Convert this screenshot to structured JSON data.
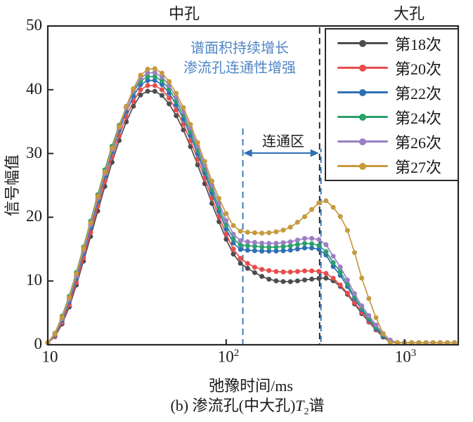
{
  "figure": {
    "region_labels": {
      "medium": "中孔",
      "large": "大孔"
    },
    "annotation": {
      "line1": "谱面积持续增长",
      "line2": "渗流孔连通性增强",
      "color": "#4f86c6"
    },
    "connected_zone_label": "连通区",
    "y_axis_title": "信号幅值",
    "x_axis_title": "弛豫时间/ms",
    "caption": {
      "prefix": "(b) 渗流孔(中大孔)",
      "var": "T",
      "sub": "2",
      "suffix": "谱"
    }
  },
  "axes": {
    "y": {
      "min": 0,
      "max": 50,
      "tick_labels": [
        "0",
        "10",
        "20",
        "30",
        "40",
        "50"
      ],
      "tick_values": [
        0,
        10,
        20,
        30,
        40,
        50
      ]
    },
    "x": {
      "scale": "log",
      "min": 10,
      "max": 2000,
      "ticks": [
        {
          "base": "10",
          "exp": ""
        },
        {
          "base": "10",
          "exp": "2"
        },
        {
          "base": "10",
          "exp": "3"
        }
      ],
      "tick_values": [
        10,
        100,
        1000
      ]
    }
  },
  "guides": {
    "pore_boundary_ms": 334,
    "pore_boundary_color": "#1a1a1a",
    "connected_zone_ms": [
      124,
      340
    ],
    "connected_zone_color": "#2e6fb7"
  },
  "colors": {
    "frame": "#262626",
    "background": "#ffffff"
  },
  "chart_data": {
    "type": "line",
    "title": "",
    "xlabel": "弛豫时间/ms",
    "ylabel": "信号幅值",
    "xlim": [
      10,
      2000
    ],
    "ylim": [
      0,
      50
    ],
    "x_scale": "log",
    "grid": false,
    "legend_position": "upper right",
    "markers": "circle",
    "x_ms": [
      10,
      12.6,
      15.8,
      20,
      25.1,
      31.6,
      37,
      44.7,
      56.2,
      70.8,
      89.1,
      112,
      141,
      178,
      224,
      282,
      330,
      355,
      400,
      450,
      500,
      560,
      630,
      710,
      800,
      900,
      1000,
      1260,
      1580,
      2000
    ],
    "series": [
      {
        "id": "run-18",
        "name": "第18次",
        "color": "#4d4d4d",
        "values": [
          0,
          4.5,
          13.0,
          23.0,
          32.0,
          38.3,
          39.8,
          38.8,
          34.3,
          27.5,
          20.0,
          13.8,
          11.5,
          10.2,
          9.9,
          10.2,
          10.4,
          10.5,
          10.0,
          8.8,
          7.2,
          5.3,
          3.6,
          2.0,
          0.7,
          0.1,
          0,
          0,
          0,
          0
        ]
      },
      {
        "id": "run-20",
        "name": "第20次",
        "color": "#e84c4c",
        "values": [
          0,
          4.8,
          13.5,
          23.8,
          32.8,
          39.1,
          40.7,
          39.7,
          35.2,
          28.4,
          20.8,
          14.6,
          12.3,
          11.6,
          11.4,
          11.6,
          11.5,
          11.3,
          10.4,
          9.0,
          7.4,
          5.5,
          3.7,
          2.1,
          0.8,
          0.1,
          0,
          0,
          0,
          0
        ]
      },
      {
        "id": "run-22",
        "name": "第22次",
        "color": "#2e6fb7",
        "values": [
          0,
          5.2,
          14.2,
          24.6,
          33.6,
          39.9,
          41.5,
          40.5,
          36.0,
          29.2,
          21.6,
          15.6,
          14.8,
          14.7,
          14.8,
          15.2,
          15.0,
          14.4,
          12.2,
          10.4,
          8.2,
          6.0,
          4.0,
          2.2,
          0.8,
          0.1,
          0,
          0,
          0,
          0
        ]
      },
      {
        "id": "run-24",
        "name": "第24次",
        "color": "#2aa06a",
        "values": [
          0,
          6.0,
          15.2,
          25.6,
          34.4,
          40.5,
          42.1,
          41.1,
          36.6,
          29.8,
          22.2,
          16.3,
          15.5,
          15.3,
          15.5,
          15.9,
          15.6,
          14.9,
          12.8,
          10.9,
          8.5,
          6.2,
          4.2,
          2.4,
          1.0,
          0.15,
          0,
          0,
          0,
          0
        ]
      },
      {
        "id": "run-26",
        "name": "第26次",
        "color": "#9b7fc4",
        "values": [
          0,
          5.5,
          14.6,
          25.0,
          34.0,
          40.8,
          42.7,
          41.7,
          37.2,
          30.4,
          22.9,
          17.0,
          16.1,
          15.9,
          16.1,
          16.7,
          16.5,
          16.0,
          13.8,
          11.6,
          9.1,
          6.6,
          4.6,
          2.7,
          1.1,
          0.2,
          0,
          0,
          0,
          0
        ]
      },
      {
        "id": "run-27",
        "name": "第27次",
        "color": "#c79a3d",
        "values": [
          0,
          5.8,
          15.0,
          25.3,
          34.2,
          41.2,
          43.3,
          42.3,
          37.8,
          31.0,
          23.6,
          18.4,
          17.6,
          17.6,
          18.3,
          20.3,
          22.2,
          22.7,
          21.5,
          19.5,
          16.5,
          11.5,
          7.3,
          3.5,
          0.7,
          0,
          0,
          0,
          0,
          0
        ]
      }
    ]
  }
}
